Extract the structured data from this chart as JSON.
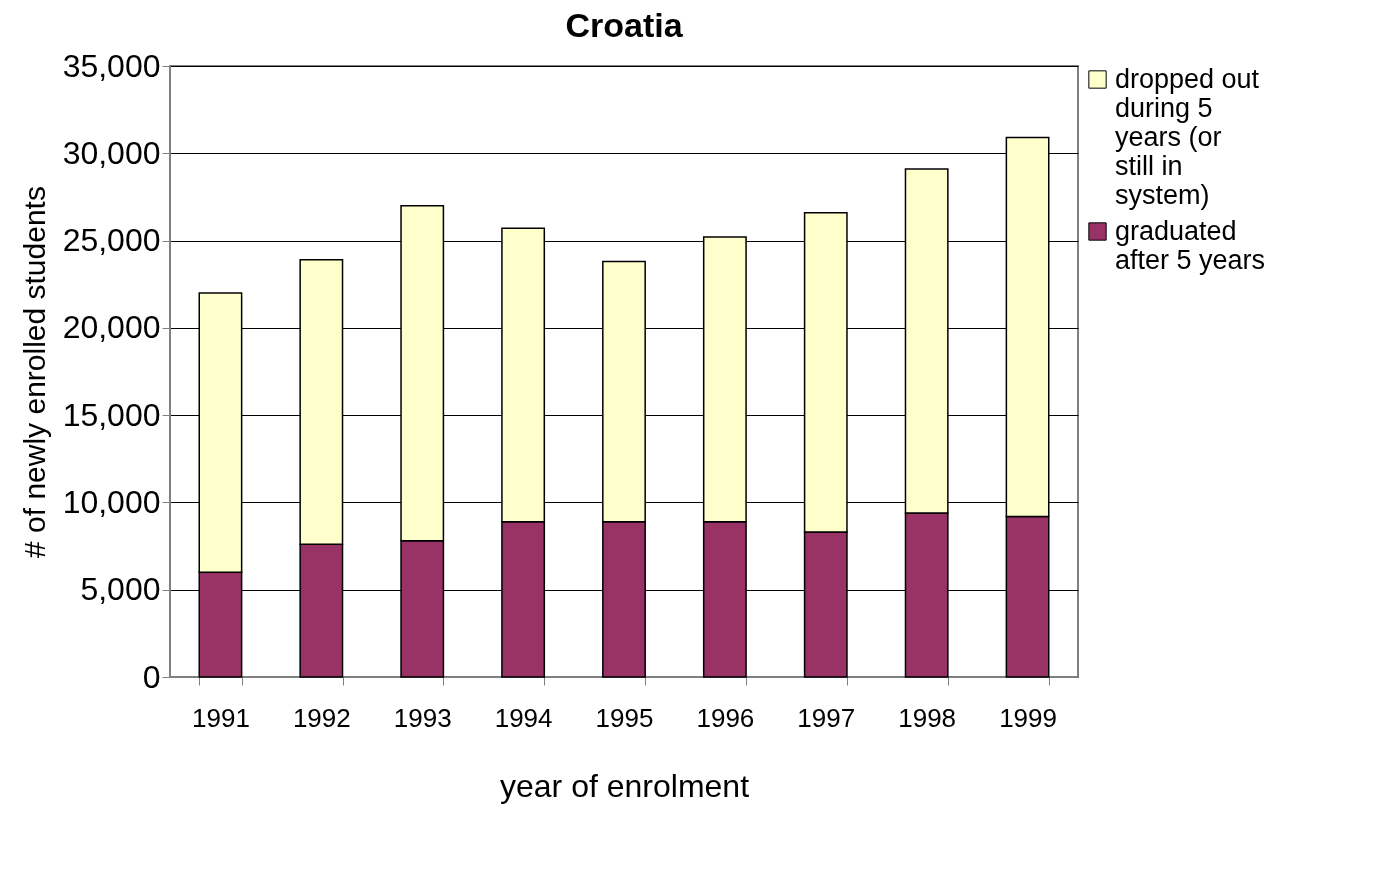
{
  "chart_data": {
    "type": "bar",
    "title": "Croatia",
    "xlabel": "year of enrolment",
    "ylabel": "# of newly enrolled students",
    "categories": [
      "1991",
      "1992",
      "1993",
      "1994",
      "1995",
      "1996",
      "1997",
      "1998",
      "1999"
    ],
    "stacked": true,
    "series": [
      {
        "name": "graduated after 5 years",
        "color": "#993366",
        "values": [
          6000,
          7600,
          7800,
          8900,
          8900,
          8900,
          8300,
          9400,
          9200
        ]
      },
      {
        "name": "dropped out during 5 years (or still in system)",
        "color": "#ffffcc",
        "values": [
          16000,
          16300,
          19200,
          16800,
          14900,
          16300,
          18300,
          19700,
          21700
        ]
      }
    ],
    "ylim": [
      0,
      35000
    ],
    "yticks": [
      {
        "value": 0,
        "label": "0"
      },
      {
        "value": 5000,
        "label": "5,000"
      },
      {
        "value": 10000,
        "label": "10,000"
      },
      {
        "value": 15000,
        "label": "15,000"
      },
      {
        "value": 20000,
        "label": "20,000"
      },
      {
        "value": 25000,
        "label": "25,000"
      },
      {
        "value": 30000,
        "label": "30,000"
      },
      {
        "value": 35000,
        "label": "35,000"
      }
    ],
    "grid": "y",
    "legend": "right"
  }
}
